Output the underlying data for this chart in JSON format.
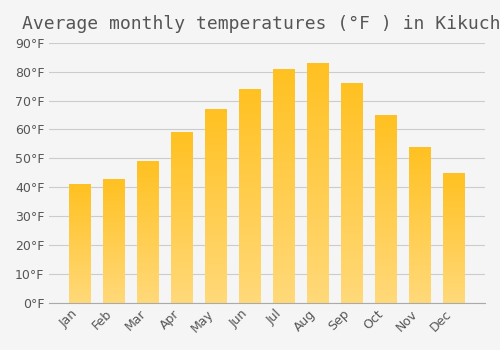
{
  "title": "Average monthly temperatures (°F ) in Kikuchi",
  "months": [
    "Jan",
    "Feb",
    "Mar",
    "Apr",
    "May",
    "Jun",
    "Jul",
    "Aug",
    "Sep",
    "Oct",
    "Nov",
    "Dec"
  ],
  "values": [
    41,
    43,
    49,
    59,
    67,
    74,
    81,
    83,
    76,
    65,
    54,
    45
  ],
  "bar_color_top": "#FFC020",
  "bar_color_bottom": "#FFD878",
  "background_color": "#F5F5F5",
  "grid_color": "#CCCCCC",
  "text_color": "#555555",
  "ylim": [
    0,
    90
  ],
  "yticks": [
    0,
    10,
    20,
    30,
    40,
    50,
    60,
    70,
    80,
    90
  ],
  "title_fontsize": 13,
  "tick_fontsize": 9
}
